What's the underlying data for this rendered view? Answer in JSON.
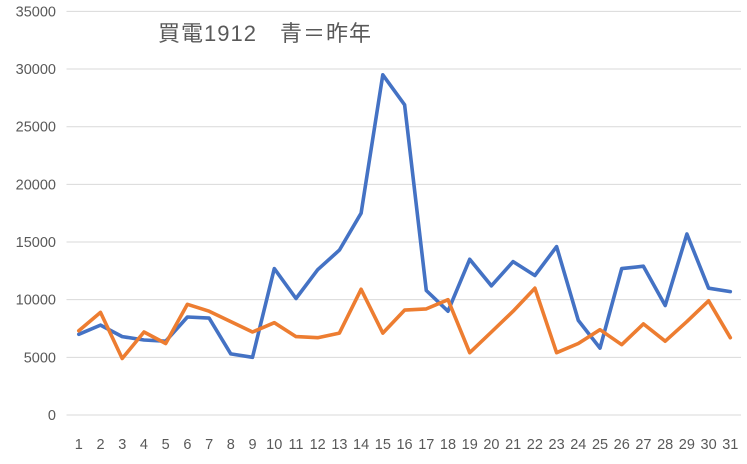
{
  "chart": {
    "title": "買電1912　青＝昨年"
  },
  "chart_data": {
    "type": "line",
    "title": "買電1912　青＝昨年",
    "x": [
      1,
      2,
      3,
      4,
      5,
      6,
      7,
      8,
      9,
      10,
      11,
      12,
      13,
      14,
      15,
      16,
      17,
      18,
      19,
      20,
      21,
      22,
      23,
      24,
      25,
      26,
      27,
      28,
      29,
      30,
      31
    ],
    "x_tick_labels": [
      "1",
      "2",
      "3",
      "4",
      "5",
      "6",
      "7",
      "8",
      "9",
      "10",
      "11",
      "12",
      "13",
      "14",
      "15",
      "16",
      "17",
      "18",
      "19",
      "20",
      "21",
      "22",
      "23",
      "24",
      "25",
      "26",
      "27",
      "28",
      "29",
      "30",
      "31"
    ],
    "series": [
      {
        "name": "blue (昨年)",
        "color": "#4472C4",
        "values": [
          7000,
          7800,
          6800,
          6500,
          6400,
          8500,
          8400,
          5300,
          5000,
          12700,
          10100,
          12600,
          14300,
          17500,
          29500,
          26900,
          10800,
          9000,
          13500,
          11200,
          13300,
          12100,
          14600,
          8200,
          5800,
          12700,
          12900,
          9500,
          15700,
          11000,
          10700
        ]
      },
      {
        "name": "orange",
        "color": "#ED7D31",
        "values": [
          7300,
          8900,
          4900,
          7200,
          6200,
          9600,
          9000,
          8100,
          7200,
          8000,
          6800,
          6700,
          7100,
          10900,
          7100,
          9100,
          9200,
          10000,
          5400,
          7200,
          9000,
          11000,
          5400,
          6200,
          7400,
          6100,
          7900,
          6400,
          8100,
          9900,
          6700
        ]
      }
    ],
    "xlabel": "",
    "ylabel": "",
    "ylim": [
      0,
      35000
    ],
    "ytick_interval": 5000,
    "y_tick_labels": [
      "0",
      "5000",
      "10000",
      "15000",
      "20000",
      "25000",
      "30000",
      "35000"
    ],
    "grid": true,
    "gridline_color": "#D9D9D9",
    "axis_label_color": "#595959",
    "legend": "none",
    "background": "#FFFFFF"
  }
}
